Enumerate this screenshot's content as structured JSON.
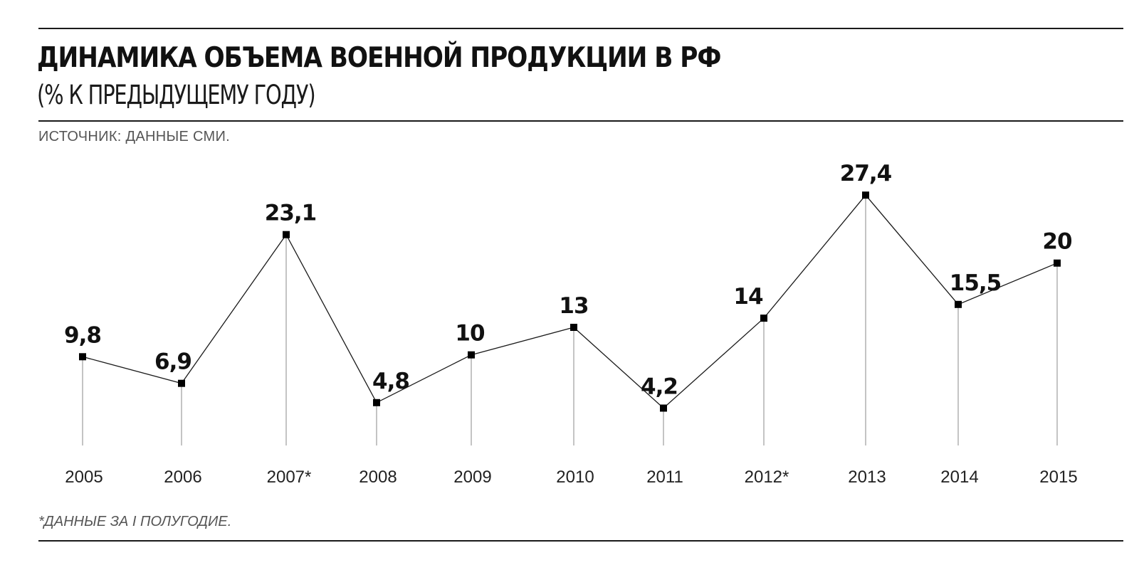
{
  "title": "ДИНАМИКА ОБЪЕМА ВОЕННОЙ ПРОДУКЦИИ В РФ",
  "subtitle": "(% К ПРЕДЫДУЩЕМУ ГОДУ)",
  "source": "ИСТОЧНИК: ДАННЫЕ СМИ.",
  "footnote": "*ДАННЫЕ ЗА I ПОЛУГОДИЕ.",
  "colors": {
    "line": "#1a1a1a",
    "marker": "#000000",
    "stem": "#888888"
  },
  "chart_data": {
    "type": "line",
    "title": "ДИНАМИКА ОБЪЕМА ВОЕННОЙ ПРОДУКЦИИ В РФ",
    "subtitle": "(% К ПРЕДЫДУЩЕМУ ГОДУ)",
    "categories": [
      "2005",
      "2006",
      "2007*",
      "2008",
      "2009",
      "2010",
      "2011",
      "2012*",
      "2013",
      "2014",
      "2015"
    ],
    "values": [
      9.8,
      6.9,
      23.1,
      4.8,
      10,
      13,
      4.2,
      14,
      27.4,
      15.5,
      20
    ],
    "value_labels": [
      "9,8",
      "6,9",
      "23,1",
      "4,8",
      "10",
      "13",
      "4,2",
      "14",
      "27,4",
      "15,5",
      "20"
    ],
    "xlabel": "",
    "ylabel": "",
    "grid": false,
    "legend": "none"
  }
}
